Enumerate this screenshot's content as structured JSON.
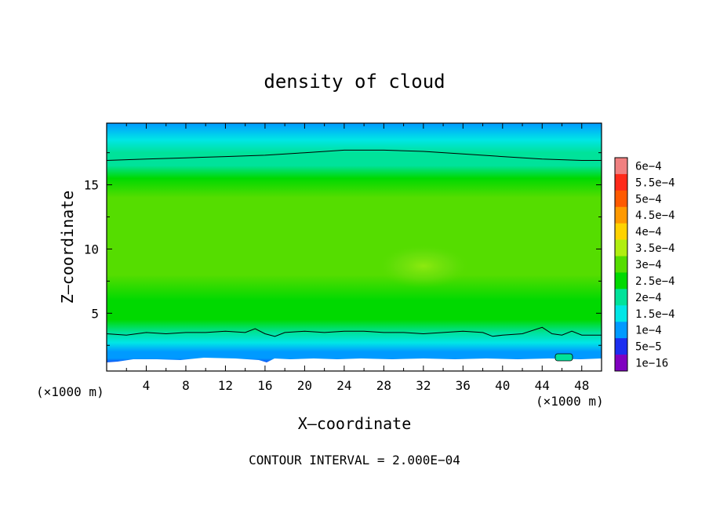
{
  "chart_data": {
    "type": "heatmap",
    "title": "density of cloud",
    "xlabel": "X–coordinate",
    "ylabel": "Z–coordinate",
    "x_unit": "(×1000 m)",
    "y_unit": "(×1000 m)",
    "footer": "CONTOUR INTERVAL = 2.000E−04",
    "xlim": [
      0,
      50
    ],
    "ylim": [
      0.5,
      19.8
    ],
    "x_ticks": [
      "4",
      "8",
      "12",
      "16",
      "20",
      "24",
      "28",
      "32",
      "36",
      "40",
      "44",
      "48"
    ],
    "y_ticks": [
      "5",
      "10",
      "15"
    ],
    "colorbar": {
      "labels": [
        "6e−4",
        "5.5e−4",
        "5e−4",
        "4.5e−4",
        "4e−4",
        "3.5e−4",
        "3e−4",
        "2.5e−4",
        "2e−4",
        "1.5e−4",
        "1e−4",
        "5e−5",
        "1e−16"
      ],
      "colors": [
        "#f08080",
        "#ff2a1a",
        "#ff5a00",
        "#ff9900",
        "#ffd200",
        "#b0ee10",
        "#55dd00",
        "#00d900",
        "#00e29a",
        "#00e6e6",
        "#009aff",
        "#1c2ef0",
        "#8000c0"
      ]
    },
    "density_profile": {
      "z": [
        0.5,
        1.0,
        1.5,
        2.0,
        2.7,
        3.5,
        4.5,
        6.0,
        8.0,
        10.0,
        12.0,
        14.0,
        15.5,
        16.5,
        17.5,
        18.5,
        19.8
      ],
      "value": [
        1e-05,
        4e-05,
        8e-05,
        0.00012,
        0.00016,
        0.0002,
        0.00023,
        0.00027,
        0.0003,
        0.00031,
        0.0003,
        0.00028,
        0.00025,
        0.00021,
        0.00018,
        0.00014,
        0.0001
      ]
    },
    "contour_lines": [
      {
        "level": 0.0002,
        "x": [
          0,
          4,
          8,
          12,
          16,
          20,
          24,
          28,
          32,
          36,
          40,
          44,
          48,
          50
        ],
        "z": [
          16.9,
          17.0,
          17.1,
          17.2,
          17.3,
          17.5,
          17.7,
          17.7,
          17.6,
          17.4,
          17.2,
          17.0,
          16.9,
          16.9
        ]
      },
      {
        "level": 0.0002,
        "x": [
          0,
          2,
          4,
          6,
          8,
          10,
          12,
          14,
          15,
          16,
          17,
          18,
          20,
          22,
          24,
          26,
          28,
          30,
          32,
          34,
          36,
          38,
          39,
          40,
          42,
          44,
          45,
          46,
          47,
          48,
          50
        ],
        "z": [
          3.4,
          3.3,
          3.5,
          3.4,
          3.5,
          3.5,
          3.6,
          3.5,
          3.8,
          3.4,
          3.2,
          3.5,
          3.6,
          3.5,
          3.6,
          3.6,
          3.5,
          3.5,
          3.4,
          3.5,
          3.6,
          3.5,
          3.2,
          3.3,
          3.4,
          3.9,
          3.4,
          3.3,
          3.6,
          3.3,
          3.3
        ]
      }
    ]
  }
}
